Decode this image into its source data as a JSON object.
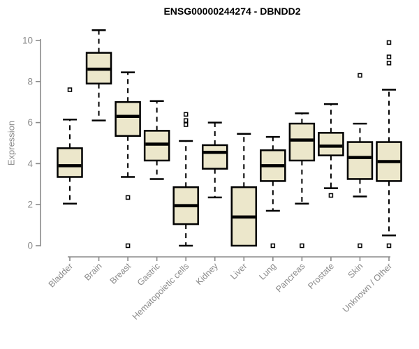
{
  "chart_data": {
    "type": "boxplot",
    "title": "ENSG00000244274 - DBNDD2",
    "ylabel": "Expression",
    "xlabel": "",
    "yticks": [
      0,
      2,
      4,
      6,
      8,
      10
    ],
    "ylim": [
      0,
      10.7
    ],
    "grid": false,
    "legend_position": "none",
    "colors": {
      "box_fill": "#ECE7CB",
      "box_stroke": "#000000",
      "median": "#000000",
      "whisker": "#000000",
      "outlier": "#000000",
      "axis": "#8A8A8A",
      "tick_label": "#8A8A8A",
      "title": "#000000",
      "background": "#FFFFFF"
    },
    "categories": [
      "Bladder",
      "Brain",
      "Breast",
      "Gastric",
      "Hematopoietic cells",
      "Kidney",
      "Liver",
      "Lung",
      "Pancreas",
      "Prostate",
      "Skin",
      "Unknown / Other"
    ],
    "boxes": [
      {
        "category": "Bladder",
        "whisker_low": 2.05,
        "q1": 3.35,
        "median": 3.9,
        "q3": 4.75,
        "whisker_high": 6.15,
        "outliers": [
          7.6
        ]
      },
      {
        "category": "Brain",
        "whisker_low": 6.1,
        "q1": 7.9,
        "median": 8.6,
        "q3": 9.4,
        "whisker_high": 10.5,
        "outliers": []
      },
      {
        "category": "Breast",
        "whisker_low": 3.35,
        "q1": 5.35,
        "median": 6.3,
        "q3": 7.0,
        "whisker_high": 8.45,
        "outliers": [
          2.35,
          0
        ]
      },
      {
        "category": "Gastric",
        "whisker_low": 3.25,
        "q1": 4.15,
        "median": 4.95,
        "q3": 5.6,
        "whisker_high": 7.05,
        "outliers": []
      },
      {
        "category": "Hematopoietic cells",
        "whisker_low": 0.0,
        "q1": 1.05,
        "median": 1.95,
        "q3": 2.85,
        "whisker_high": 5.1,
        "outliers": [
          6.4,
          6.1,
          5.9
        ]
      },
      {
        "category": "Kidney",
        "whisker_low": 2.35,
        "q1": 3.75,
        "median": 4.55,
        "q3": 4.9,
        "whisker_high": 6.0,
        "outliers": []
      },
      {
        "category": "Liver",
        "whisker_low": null,
        "q1": 0.0,
        "median": 1.4,
        "q3": 2.85,
        "whisker_high": 5.45,
        "outliers": []
      },
      {
        "category": "Lung",
        "whisker_low": 1.7,
        "q1": 3.15,
        "median": 3.9,
        "q3": 4.65,
        "whisker_high": 5.3,
        "outliers": [
          0
        ]
      },
      {
        "category": "Pancreas",
        "whisker_low": 2.05,
        "q1": 4.15,
        "median": 5.15,
        "q3": 5.95,
        "whisker_high": 6.45,
        "outliers": [
          0
        ]
      },
      {
        "category": "Prostate",
        "whisker_low": 2.8,
        "q1": 4.4,
        "median": 4.85,
        "q3": 5.5,
        "whisker_high": 6.9,
        "outliers": [
          2.45
        ]
      },
      {
        "category": "Skin",
        "whisker_low": 2.4,
        "q1": 3.25,
        "median": 4.3,
        "q3": 5.05,
        "whisker_high": 5.95,
        "outliers": [
          8.3,
          0
        ]
      },
      {
        "category": "Unknown / Other",
        "whisker_low": 0.5,
        "q1": 3.15,
        "median": 4.1,
        "q3": 5.05,
        "whisker_high": 7.6,
        "outliers": [
          9.9,
          9.2,
          8.9,
          0
        ]
      }
    ]
  }
}
